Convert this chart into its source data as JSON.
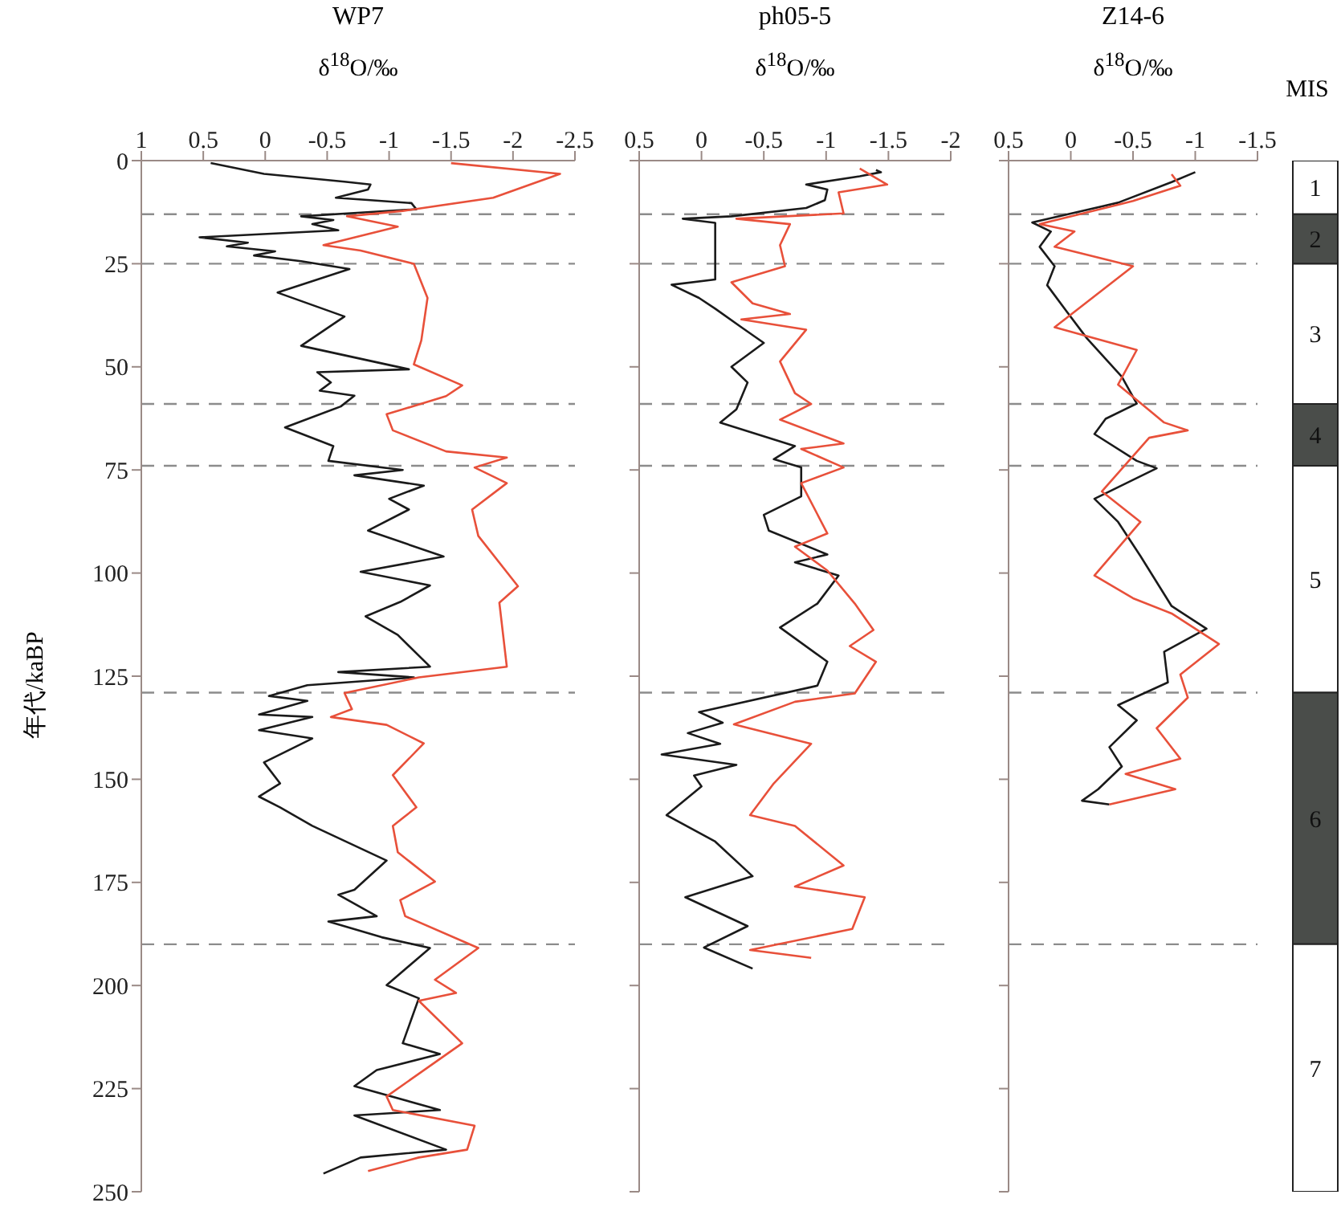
{
  "chart_data": [
    {
      "type": "line",
      "orientation": "horizontal",
      "title": "WP7",
      "xlabel": "δ$^{18}$O/‰",
      "ylabel": "年代/kaBP",
      "xlim": [
        1,
        -2.5
      ],
      "xticks": [
        1,
        0.5,
        0,
        -0.5,
        -1,
        -1.5,
        -2,
        -2.5
      ],
      "ylim": [
        250,
        0
      ],
      "yticks": [
        0,
        25,
        50,
        75,
        100,
        125,
        150,
        175,
        200,
        225,
        250
      ],
      "ref_lines": [
        {
          "axis": "y",
          "value": 13,
          "color": "#8c8c8c",
          "line_style": "dashed"
        },
        {
          "axis": "y",
          "value": 25,
          "color": "#8c8c8c",
          "line_style": "dashed"
        },
        {
          "axis": "y",
          "value": 59,
          "color": "#8c8c8c",
          "line_style": "dashed"
        },
        {
          "axis": "y",
          "value": 74,
          "color": "#8c8c8c",
          "line_style": "dashed"
        },
        {
          "axis": "y",
          "value": 129,
          "color": "#8c8c8c",
          "line_style": "dashed"
        },
        {
          "axis": "y",
          "value": 190,
          "color": "#8c8c8c",
          "line_style": "dashed"
        }
      ],
      "series": [
        {
          "color": "#1a1a1a",
          "x": [
            0.6,
            3.2,
            5.1,
            5.8,
            7,
            9,
            9.6,
            10.3,
            11.8,
            12.6,
            13.5,
            14.4,
            15.4,
            16.9,
            18.6,
            19.9,
            20.8,
            22,
            23,
            24.4,
            26.3,
            32,
            37.8,
            44.9,
            50.6,
            51.3,
            53.8,
            55.8,
            57,
            59.6,
            64.7,
            69.2,
            72.8,
            75,
            76.3,
            78.8,
            82,
            84.6,
            89.7,
            96,
            99.7,
            103,
            107,
            110.5,
            115,
            122.7,
            124,
            125.3,
            127.2,
            129.8,
            131,
            134.3,
            134.9,
            138.1,
            140.1,
            145.9,
            151,
            154.2,
            156.8,
            161.3,
            169.7,
            176.8,
            178,
            183.2,
            184.5,
            188.3,
            190.9,
            199.9,
            203.1,
            214,
            216.6,
            220.5,
            224.4,
            230.2,
            231.5,
            239.8,
            241.7,
            245.6
          ],
          "values": [
            0.44,
            0.01,
            -0.64,
            -0.85,
            -0.83,
            -0.57,
            -0.85,
            -1.18,
            -1.22,
            -0.77,
            -0.29,
            -0.55,
            -0.38,
            -0.59,
            0.53,
            0.14,
            0.31,
            -0.08,
            0.09,
            -0.29,
            -0.68,
            -0.1,
            -0.64,
            -0.29,
            -1.16,
            -0.42,
            -0.53,
            -0.44,
            -0.72,
            -0.61,
            -0.16,
            -0.55,
            -0.51,
            -1.11,
            -0.72,
            -1.28,
            -1.0,
            -1.16,
            -0.83,
            -1.44,
            -0.77,
            -1.33,
            -1.09,
            -0.81,
            -1.07,
            -1.33,
            -0.59,
            -1.2,
            -0.34,
            -0.03,
            -0.34,
            0.05,
            -0.38,
            0.05,
            -0.38,
            0.01,
            -0.12,
            0.05,
            -0.12,
            -0.38,
            -0.98,
            -0.72,
            -0.59,
            -0.9,
            -0.51,
            -0.94,
            -1.33,
            -0.98,
            -1.24,
            -1.11,
            -1.41,
            -0.9,
            -0.72,
            -1.41,
            -0.72,
            -1.46,
            -0.77,
            -0.47
          ]
        },
        {
          "color": "#e8503a",
          "x": [
            0.6,
            3.2,
            9,
            12.2,
            13.5,
            16,
            20.5,
            21.8,
            25,
            33.3,
            43.6,
            49.4,
            54.5,
            57.1,
            61.5,
            65.4,
            70.5,
            72,
            74.4,
            78.2,
            84.6,
            91,
            103.2,
            107.2,
            122.7,
            125.3,
            129.1,
            133,
            134.9,
            136.8,
            141.3,
            149,
            156.8,
            161.3,
            167.7,
            174.8,
            179.3,
            183.2,
            190.9,
            198.6,
            201.8,
            203.7,
            214,
            226.9,
            230.2,
            234,
            239.8,
            241.7,
            245
          ],
          "values": [
            -1.5,
            -2.38,
            -1.84,
            -1.11,
            -0.66,
            -1.07,
            -0.47,
            -0.77,
            -1.2,
            -1.31,
            -1.26,
            -1.2,
            -1.59,
            -1.46,
            -0.98,
            -1.03,
            -1.46,
            -1.95,
            -1.69,
            -1.95,
            -1.67,
            -1.72,
            -2.04,
            -1.89,
            -1.95,
            -1.24,
            -0.64,
            -0.7,
            -0.53,
            -0.98,
            -1.28,
            -1.03,
            -1.22,
            -1.03,
            -1.07,
            -1.37,
            -1.09,
            -1.13,
            -1.72,
            -1.37,
            -1.54,
            -1.24,
            -1.59,
            -0.98,
            -1.03,
            -1.69,
            -1.63,
            -1.24,
            -0.83
          ]
        }
      ]
    },
    {
      "type": "line",
      "orientation": "horizontal",
      "title": "ph05-5",
      "xlabel": "δ$^{18}$O/‰",
      "tick_labels": "x",
      "xlim": [
        0.5,
        -2
      ],
      "xticks": [
        0.5,
        0,
        -0.5,
        -1,
        -1.5,
        -2
      ],
      "ylim": [
        250,
        0
      ],
      "yticks": [
        0,
        25,
        50,
        75,
        100,
        125,
        150,
        175,
        200,
        225,
        250
      ],
      "ref_lines": [
        {
          "axis": "y",
          "value": 13,
          "color": "#8c8c8c",
          "line_style": "dashed"
        },
        {
          "axis": "y",
          "value": 25,
          "color": "#8c8c8c",
          "line_style": "dashed"
        },
        {
          "axis": "y",
          "value": 59,
          "color": "#8c8c8c",
          "line_style": "dashed"
        },
        {
          "axis": "y",
          "value": 74,
          "color": "#8c8c8c",
          "line_style": "dashed"
        },
        {
          "axis": "y",
          "value": 129,
          "color": "#8c8c8c",
          "line_style": "dashed"
        },
        {
          "axis": "y",
          "value": 190,
          "color": "#8c8c8c",
          "line_style": "dashed"
        }
      ],
      "series": [
        {
          "color": "#1a1a1a",
          "x": [
            2.3,
            2.8,
            3.8,
            5.8,
            7,
            9.6,
            11.5,
            13.5,
            14.1,
            15.1,
            28.8,
            30.1,
            33.3,
            35.9,
            40.4,
            44.2,
            50,
            53.8,
            60.3,
            63.5,
            69.2,
            72.4,
            74.4,
            81.4,
            85.9,
            89.7,
            95.5,
            97.4,
            100.6,
            107.4,
            113.2,
            121.5,
            127.3,
            133.7,
            136.3,
            138.8,
            141.4,
            144,
            146.5,
            149.1,
            151.7,
            158.7,
            165.1,
            173.5,
            178.6,
            185.6,
            190.8,
            195.9
          ],
          "values": [
            -1.4,
            -1.44,
            -1.27,
            -0.84,
            -1.01,
            -0.99,
            -0.84,
            -0.24,
            0.15,
            -0.11,
            -0.11,
            0.24,
            0.02,
            -0.11,
            -0.32,
            -0.5,
            -0.24,
            -0.37,
            -0.28,
            -0.15,
            -0.75,
            -0.58,
            -0.8,
            -0.8,
            -0.5,
            -0.54,
            -1.01,
            -0.75,
            -1.1,
            -0.93,
            -0.63,
            -1.01,
            -0.93,
            0.02,
            -0.17,
            0.11,
            -0.15,
            0.32,
            -0.28,
            0.06,
            0,
            0.28,
            -0.11,
            -0.41,
            0.13,
            -0.37,
            -0.02,
            -0.41
          ]
        },
        {
          "color": "#e8503a",
          "x": [
            1.9,
            5.8,
            7.7,
            12.8,
            14.1,
            15.4,
            20.5,
            25.6,
            29.5,
            34.6,
            37.2,
            38.5,
            41,
            48.7,
            56.4,
            59,
            62.8,
            68.6,
            69.9,
            74.4,
            78.2,
            90.4,
            93.6,
            99.4,
            107.4,
            113.8,
            117.7,
            121.5,
            129.2,
            131.2,
            136.7,
            141.4,
            151,
            158.7,
            161.3,
            170.9,
            176,
            178.6,
            186.3,
            191.4,
            193.3
          ],
          "values": [
            -1.27,
            -1.49,
            -1.1,
            -1.14,
            -0.28,
            -0.71,
            -0.63,
            -0.67,
            -0.24,
            -0.41,
            -0.71,
            -0.32,
            -0.84,
            -0.63,
            -0.75,
            -0.88,
            -0.63,
            -1.14,
            -0.8,
            -1.14,
            -0.8,
            -1.01,
            -0.75,
            -1.01,
            -1.23,
            -1.38,
            -1.19,
            -1.4,
            -1.23,
            -0.75,
            -0.26,
            -0.88,
            -0.58,
            -0.39,
            -0.75,
            -1.14,
            -0.75,
            -1.31,
            -1.21,
            -0.39,
            -0.88
          ]
        }
      ]
    },
    {
      "type": "line",
      "orientation": "horizontal",
      "title": "Z14-6",
      "xlabel": "δ$^{18}$O/‰",
      "tick_labels": "x",
      "xlim": [
        0.5,
        -1.5
      ],
      "xticks": [
        0.5,
        0,
        -0.5,
        -1,
        -1.5
      ],
      "ylim": [
        250,
        0
      ],
      "yticks": [
        0,
        25,
        50,
        75,
        100,
        125,
        150,
        175,
        200,
        225,
        250
      ],
      "ref_lines": [
        {
          "axis": "y",
          "value": 13,
          "color": "#8c8c8c",
          "line_style": "dashed"
        },
        {
          "axis": "y",
          "value": 25,
          "color": "#8c8c8c",
          "line_style": "dashed"
        },
        {
          "axis": "y",
          "value": 59,
          "color": "#8c8c8c",
          "line_style": "dashed"
        },
        {
          "axis": "y",
          "value": 74,
          "color": "#8c8c8c",
          "line_style": "dashed"
        },
        {
          "axis": "y",
          "value": 129,
          "color": "#8c8c8c",
          "line_style": "dashed"
        },
        {
          "axis": "y",
          "value": 190,
          "color": "#8c8c8c",
          "line_style": "dashed"
        }
      ],
      "series": [
        {
          "color": "#1a1a1a",
          "x": [
            2.8,
            5.2,
            10.2,
            15,
            17.2,
            20.9,
            25.6,
            30.2,
            36.7,
            43.1,
            52.4,
            58.9,
            62.6,
            66.3,
            72.8,
            74.6,
            82,
            87.6,
            95.9,
            108,
            113.5,
            119.1,
            126.5,
            132,
            135.7,
            142.2,
            146.9,
            152.4,
            155.2,
            156.1
          ],
          "values": [
            -1.0,
            -0.81,
            -0.38,
            0.31,
            0.16,
            0.25,
            0.13,
            0.19,
            0.03,
            -0.13,
            -0.41,
            -0.53,
            -0.28,
            -0.19,
            -0.53,
            -0.69,
            -0.19,
            -0.38,
            -0.56,
            -0.81,
            -1.09,
            -0.75,
            -0.78,
            -0.38,
            -0.53,
            -0.31,
            -0.41,
            -0.22,
            -0.09,
            -0.31
          ]
        },
        {
          "color": "#e8503a",
          "x": [
            3.3,
            6.1,
            9.8,
            15.4,
            17.2,
            20.9,
            25.6,
            40.4,
            45.9,
            54.3,
            63.5,
            65.4,
            67.2,
            80.2,
            87.6,
            100.6,
            106.1,
            109.8,
            117.2,
            124.6,
            130.2,
            137.6,
            145,
            148.7,
            152.4,
            156.1
          ],
          "values": [
            -0.81,
            -0.88,
            -0.5,
            0.25,
            -0.03,
            0.13,
            -0.5,
            0.13,
            -0.53,
            -0.38,
            -0.75,
            -0.94,
            -0.63,
            -0.25,
            -0.56,
            -0.19,
            -0.5,
            -0.81,
            -1.19,
            -0.88,
            -0.94,
            -0.69,
            -0.88,
            -0.44,
            -0.84,
            -0.31
          ]
        }
      ]
    },
    {
      "type": "bar",
      "stacked": true,
      "title": "MIS",
      "categories": [
        null
      ],
      "tick_labels": false,
      "ylim": [
        250,
        0
      ],
      "series": [
        {
          "name": "1",
          "color": "#ffffff",
          "values": [
            13
          ]
        },
        {
          "name": "2",
          "color": "#4a4d4a",
          "values": [
            12
          ]
        },
        {
          "name": "3",
          "color": "#ffffff",
          "values": [
            34
          ]
        },
        {
          "name": "4",
          "color": "#4a4d4a",
          "values": [
            15
          ]
        },
        {
          "name": "5",
          "color": "#ffffff",
          "values": [
            55
          ]
        },
        {
          "name": "6",
          "color": "#4a4d4a",
          "values": [
            61
          ]
        },
        {
          "name": "7",
          "color": "#ffffff",
          "values": [
            60
          ]
        }
      ]
    }
  ]
}
